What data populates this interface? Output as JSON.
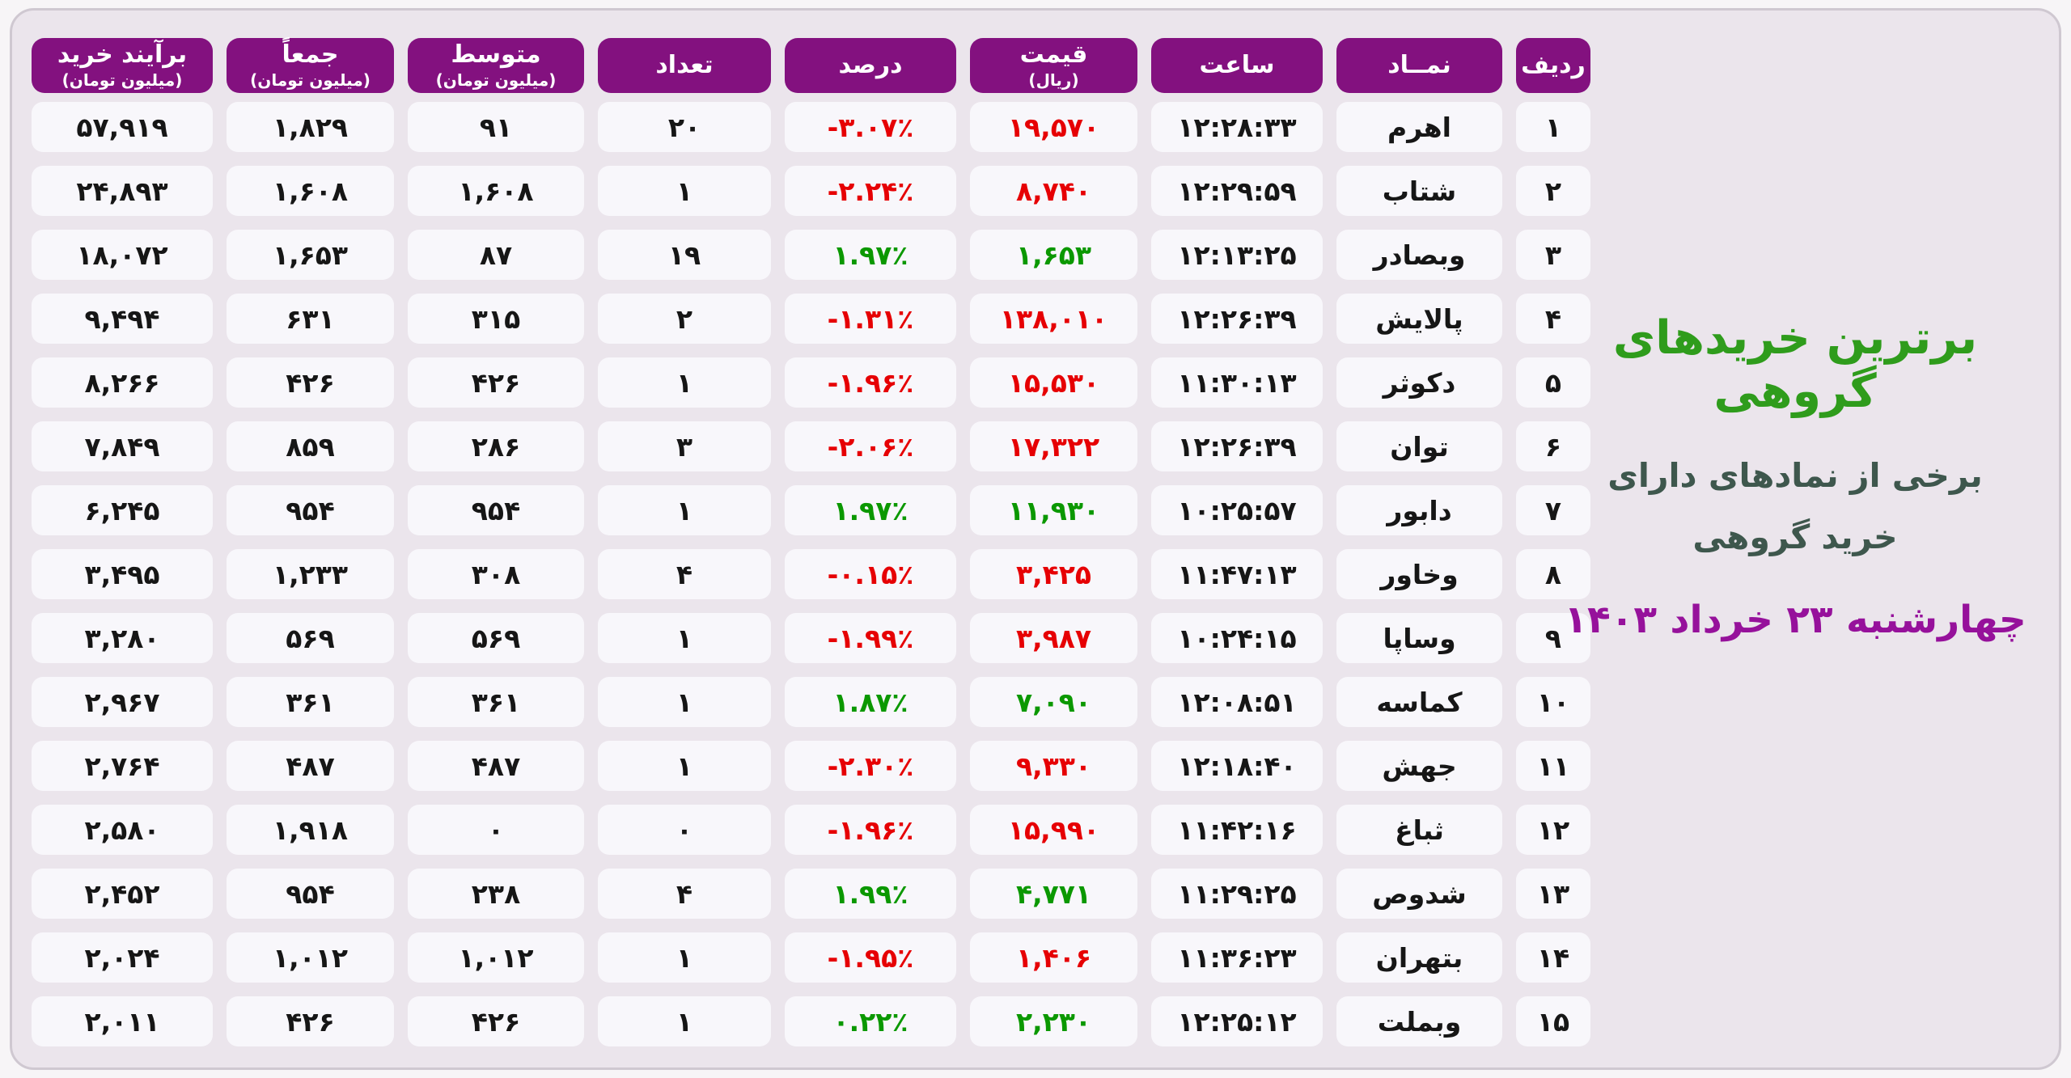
{
  "colors": {
    "header_purple": "#83117f",
    "negative_red": "#e60004",
    "positive_green": "#0b9800",
    "title_green": "#2f9c1c",
    "subtitle_dark": "#3e574d",
    "date_purple": "#96119b",
    "cell_background": "#f8f7fb",
    "panel_background": "#ebe5ec"
  },
  "title": {
    "main": "برترین خریدهای گروهی",
    "subtitle_line1": "برخی از نمادهای دارای",
    "subtitle_line2": "خرید گروهی",
    "date": "چهارشنبه ۲۳ خرداد ۱۴۰۳"
  },
  "table": {
    "columns": [
      {
        "key": "rank",
        "label": "ردیف",
        "sublabel": "",
        "ltr": true,
        "color_key": null
      },
      {
        "key": "symbol",
        "label": "نمــاد",
        "sublabel": "",
        "ltr": false,
        "color_key": null
      },
      {
        "key": "time",
        "label": "ساعت",
        "sublabel": "",
        "ltr": true,
        "color_key": null
      },
      {
        "key": "price",
        "label": "قیمت",
        "sublabel": "(ریال)",
        "ltr": true,
        "color_key": "price_color"
      },
      {
        "key": "percent",
        "label": "درصد",
        "sublabel": "",
        "ltr": true,
        "color_key": "percent_color"
      },
      {
        "key": "count",
        "label": "تعداد",
        "sublabel": "",
        "ltr": true,
        "color_key": null
      },
      {
        "key": "avg",
        "label": "متوسط",
        "sublabel": "(میلیون تومان)",
        "ltr": true,
        "color_key": null
      },
      {
        "key": "total",
        "label": "جمعاً",
        "sublabel": "(میلیون تومان)",
        "ltr": true,
        "color_key": null
      },
      {
        "key": "net",
        "label": "برآیند خرید",
        "sublabel": "(میلیون تومان)",
        "ltr": true,
        "color_key": null
      }
    ],
    "rows": [
      {
        "rank": "۱",
        "symbol": "اهرم",
        "time": "۱۲:۲۸:۳۳",
        "price": "۱۹,۵۷۰",
        "price_color": "red",
        "percent": "-۳.۰۷٪",
        "percent_color": "red",
        "count": "۲۰",
        "avg": "۹۱",
        "total": "۱,۸۲۹",
        "net": "۵۷,۹۱۹"
      },
      {
        "rank": "۲",
        "symbol": "شتاب",
        "time": "۱۲:۲۹:۵۹",
        "price": "۸,۷۴۰",
        "price_color": "red",
        "percent": "-۲.۲۴٪",
        "percent_color": "red",
        "count": "۱",
        "avg": "۱,۶۰۸",
        "total": "۱,۶۰۸",
        "net": "۲۴,۸۹۳"
      },
      {
        "rank": "۳",
        "symbol": "وبصادر",
        "time": "۱۲:۱۳:۲۵",
        "price": "۱,۶۵۳",
        "price_color": "green",
        "percent": "۱.۹۷٪",
        "percent_color": "green",
        "count": "۱۹",
        "avg": "۸۷",
        "total": "۱,۶۵۳",
        "net": "۱۸,۰۷۲"
      },
      {
        "rank": "۴",
        "symbol": "پالایش",
        "time": "۱۲:۲۶:۳۹",
        "price": "۱۳۸,۰۱۰",
        "price_color": "red",
        "percent": "-۱.۳۱٪",
        "percent_color": "red",
        "count": "۲",
        "avg": "۳۱۵",
        "total": "۶۳۱",
        "net": "۹,۴۹۴"
      },
      {
        "rank": "۵",
        "symbol": "دکوثر",
        "time": "۱۱:۳۰:۱۳",
        "price": "۱۵,۵۳۰",
        "price_color": "red",
        "percent": "-۱.۹۶٪",
        "percent_color": "red",
        "count": "۱",
        "avg": "۴۲۶",
        "total": "۴۲۶",
        "net": "۸,۲۶۶"
      },
      {
        "rank": "۶",
        "symbol": "توان",
        "time": "۱۲:۲۶:۳۹",
        "price": "۱۷,۳۲۲",
        "price_color": "red",
        "percent": "-۲.۰۶٪",
        "percent_color": "red",
        "count": "۳",
        "avg": "۲۸۶",
        "total": "۸۵۹",
        "net": "۷,۸۴۹"
      },
      {
        "rank": "۷",
        "symbol": "دابور",
        "time": "۱۰:۲۵:۵۷",
        "price": "۱۱,۹۳۰",
        "price_color": "green",
        "percent": "۱.۹۷٪",
        "percent_color": "green",
        "count": "۱",
        "avg": "۹۵۴",
        "total": "۹۵۴",
        "net": "۶,۲۴۵"
      },
      {
        "rank": "۸",
        "symbol": "وخاور",
        "time": "۱۱:۴۷:۱۳",
        "price": "۳,۴۲۵",
        "price_color": "red",
        "percent": "-۰.۱۵٪",
        "percent_color": "red",
        "count": "۴",
        "avg": "۳۰۸",
        "total": "۱,۲۳۳",
        "net": "۳,۴۹۵"
      },
      {
        "rank": "۹",
        "symbol": "وساپا",
        "time": "۱۰:۲۴:۱۵",
        "price": "۳,۹۸۷",
        "price_color": "red",
        "percent": "-۱.۹۹٪",
        "percent_color": "red",
        "count": "۱",
        "avg": "۵۶۹",
        "total": "۵۶۹",
        "net": "۳,۲۸۰"
      },
      {
        "rank": "۱۰",
        "symbol": "کماسه",
        "time": "۱۲:۰۸:۵۱",
        "price": "۷,۰۹۰",
        "price_color": "green",
        "percent": "۱.۸۷٪",
        "percent_color": "green",
        "count": "۱",
        "avg": "۳۶۱",
        "total": "۳۶۱",
        "net": "۲,۹۶۷"
      },
      {
        "rank": "۱۱",
        "symbol": "جهش",
        "time": "۱۲:۱۸:۴۰",
        "price": "۹,۳۳۰",
        "price_color": "red",
        "percent": "-۲.۳۰٪",
        "percent_color": "red",
        "count": "۱",
        "avg": "۴۸۷",
        "total": "۴۸۷",
        "net": "۲,۷۶۴"
      },
      {
        "rank": "۱۲",
        "symbol": "ثباغ",
        "time": "۱۱:۴۲:۱۶",
        "price": "۱۵,۹۹۰",
        "price_color": "red",
        "percent": "-۱.۹۶٪",
        "percent_color": "red",
        "count": "۰",
        "avg": "۰",
        "total": "۱,۹۱۸",
        "net": "۲,۵۸۰"
      },
      {
        "rank": "۱۳",
        "symbol": "شدوص",
        "time": "۱۱:۲۹:۲۵",
        "price": "۴,۷۷۱",
        "price_color": "green",
        "percent": "۱.۹۹٪",
        "percent_color": "green",
        "count": "۴",
        "avg": "۲۳۸",
        "total": "۹۵۴",
        "net": "۲,۴۵۲"
      },
      {
        "rank": "۱۴",
        "symbol": "بتهران",
        "time": "۱۱:۳۶:۲۳",
        "price": "۱,۴۰۶",
        "price_color": "red",
        "percent": "-۱.۹۵٪",
        "percent_color": "red",
        "count": "۱",
        "avg": "۱,۰۱۲",
        "total": "۱,۰۱۲",
        "net": "۲,۰۲۴"
      },
      {
        "rank": "۱۵",
        "symbol": "وبملت",
        "time": "۱۲:۲۵:۱۲",
        "price": "۲,۲۳۰",
        "price_color": "green",
        "percent": "۰.۲۲٪",
        "percent_color": "green",
        "count": "۱",
        "avg": "۴۲۶",
        "total": "۴۲۶",
        "net": "۲,۰۱۱"
      }
    ]
  },
  "chart_data": {
    "type": "table",
    "title": "برترین خریدهای گروهی",
    "subtitle": "برخی از نمادهای دارای خرید گروهی — چهارشنبه ۲۳ خرداد ۱۴۰۳",
    "columns": [
      "ردیف",
      "نمــاد",
      "ساعت",
      "قیمت (ریال)",
      "درصد",
      "تعداد",
      "متوسط (میلیون تومان)",
      "جمعاً (میلیون تومان)",
      "برآیند خرید (میلیون تومان)"
    ],
    "rows": [
      [
        1,
        "اهرم",
        "12:28:33",
        19570,
        -3.07,
        20,
        91,
        1829,
        57919
      ],
      [
        2,
        "شتاب",
        "12:29:59",
        8740,
        -2.24,
        1,
        1608,
        1608,
        24893
      ],
      [
        3,
        "وبصادر",
        "12:13:25",
        1653,
        1.97,
        19,
        87,
        1653,
        18072
      ],
      [
        4,
        "پالایش",
        "12:26:39",
        138010,
        -1.31,
        2,
        315,
        631,
        9494
      ],
      [
        5,
        "دکوثر",
        "11:30:13",
        15530,
        -1.96,
        1,
        426,
        426,
        8266
      ],
      [
        6,
        "توان",
        "12:26:39",
        17322,
        -2.06,
        3,
        286,
        859,
        7849
      ],
      [
        7,
        "دابور",
        "10:25:57",
        11930,
        1.97,
        1,
        954,
        954,
        6245
      ],
      [
        8,
        "وخاور",
        "11:47:13",
        3425,
        -0.15,
        4,
        308,
        1233,
        3495
      ],
      [
        9,
        "وساپا",
        "10:24:15",
        3987,
        -1.99,
        1,
        569,
        569,
        3280
      ],
      [
        10,
        "کماسه",
        "12:08:51",
        7090,
        1.87,
        1,
        361,
        361,
        2967
      ],
      [
        11,
        "جهش",
        "12:18:40",
        9330,
        -2.3,
        1,
        487,
        487,
        2764
      ],
      [
        12,
        "ثباغ",
        "11:42:16",
        15990,
        -1.96,
        0,
        0,
        1918,
        2580
      ],
      [
        13,
        "شدوص",
        "11:29:25",
        4771,
        1.99,
        4,
        238,
        954,
        2452
      ],
      [
        14,
        "بتهران",
        "11:36:23",
        1406,
        -1.95,
        1,
        1012,
        1012,
        2024
      ],
      [
        15,
        "وبملت",
        "12:25:12",
        2230,
        0.22,
        1,
        426,
        426,
        2011
      ]
    ]
  }
}
